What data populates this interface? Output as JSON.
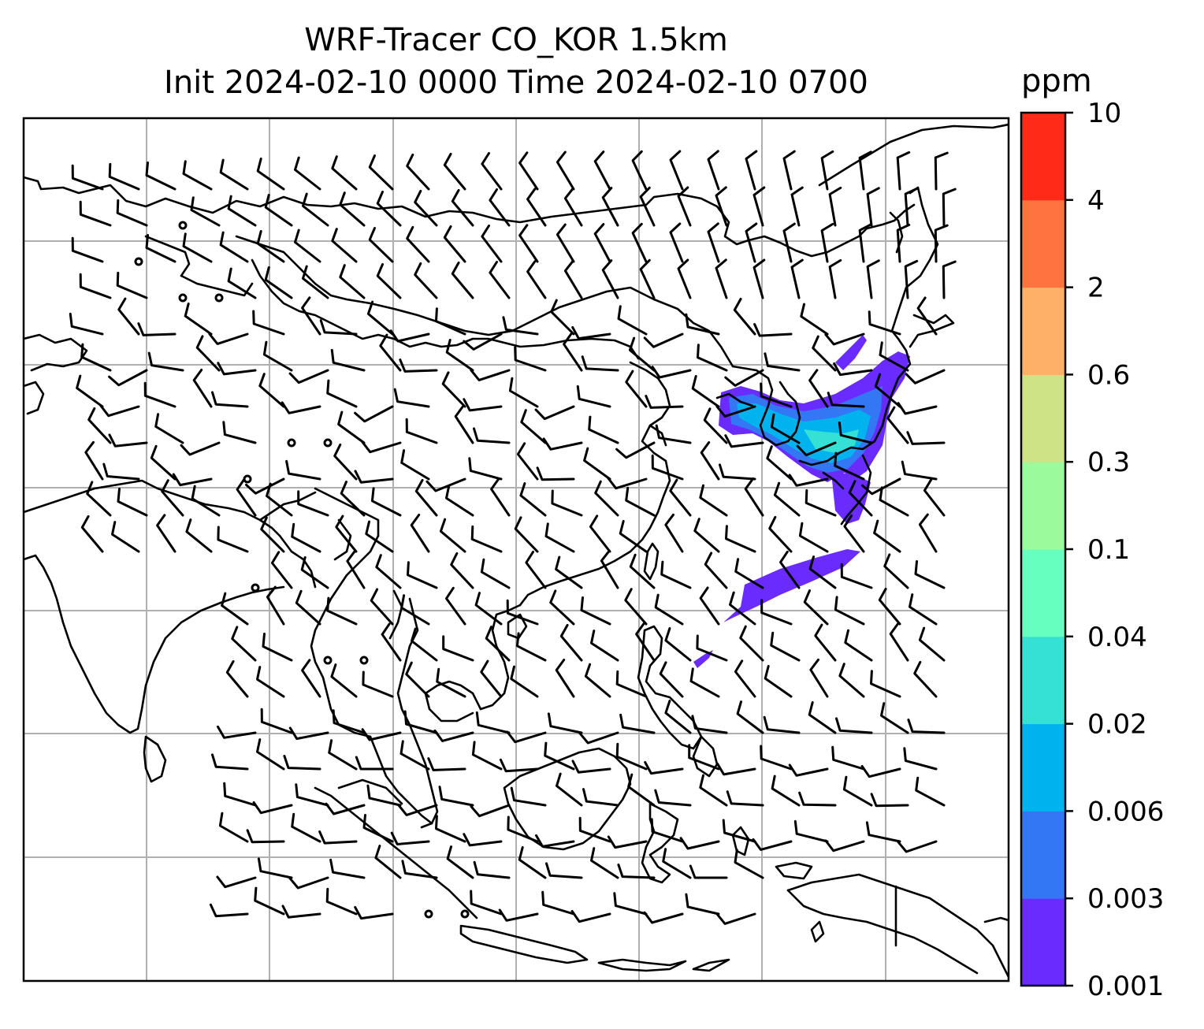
{
  "title": {
    "line1": "WRF-Tracer CO_KOR 1.5km",
    "line2": "Init 2024-02-10 0000 Time 2024-02-10 0700"
  },
  "colorbar": {
    "unit": "ppm",
    "levels": [
      "0.001",
      "0.003",
      "0.006",
      "0.02",
      "0.04",
      "0.1",
      "0.3",
      "0.6",
      "2",
      "4",
      "10"
    ],
    "colors": [
      "#6a2bff",
      "#3377f5",
      "#00b3ee",
      "#35e0d5",
      "#66ffbf",
      "#9bfa9b",
      "#cde386",
      "#fdb066",
      "#ff743e",
      "#ff2a17"
    ]
  },
  "map": {
    "gridlines": true,
    "gridline_color": "#b0b0b0",
    "coastline_color": "#000000",
    "tracer_plume_primary_color": "#6a2bff"
  }
}
